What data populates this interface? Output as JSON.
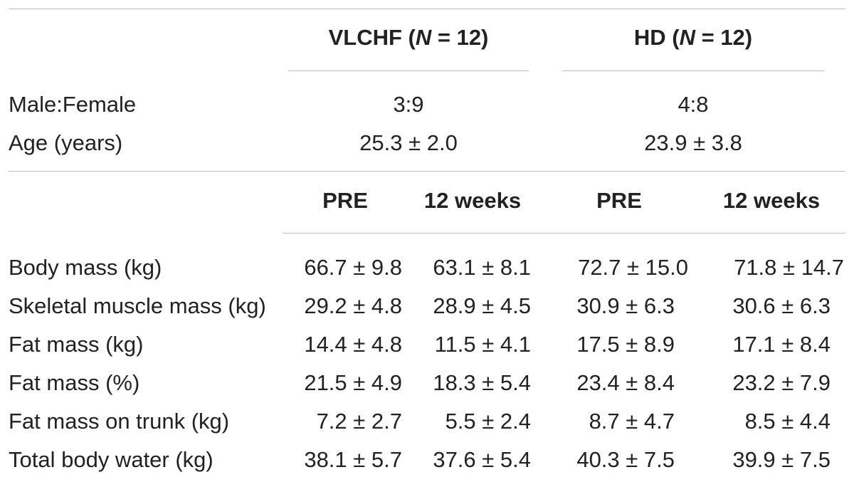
{
  "table": {
    "groups": [
      {
        "label_prefix": "VLCHF (",
        "label_n": "N",
        "label_suffix": " = 12)"
      },
      {
        "label_prefix": "HD (",
        "label_n": "N",
        "label_suffix": " = 12)"
      }
    ],
    "demographics": [
      {
        "label": "Male:Female",
        "vlchf": "3:9",
        "hd": "4:8"
      },
      {
        "label": "Age (years)",
        "vlchf": "25.3 ± 2.0",
        "hd": "23.9 ± 3.8"
      }
    ],
    "time_headers": [
      "PRE",
      "12 weeks",
      "PRE",
      "12 weeks"
    ],
    "measures": [
      {
        "label": "Body mass (kg)",
        "values": [
          "66.7 ± 9.8",
          "63.1 ± 8.1",
          "72.7 ± 15.0",
          "71.8 ± 14.7"
        ]
      },
      {
        "label": "Skeletal muscle mass (kg)",
        "values": [
          "29.2 ± 4.8",
          "28.9 ± 4.5",
          "30.9 ± 6.3",
          "30.6 ± 6.3"
        ]
      },
      {
        "label": "Fat mass (kg)",
        "values": [
          "14.4 ± 4.8",
          "11.5 ± 4.1",
          "17.5 ± 8.9",
          "17.1 ± 8.4"
        ]
      },
      {
        "label": "Fat mass (%)",
        "values": [
          "21.5 ± 4.9",
          "18.3 ± 5.4",
          "23.4 ± 8.4",
          "23.2 ± 7.9"
        ]
      },
      {
        "label": "Fat mass on trunk (kg)",
        "values": [
          "7.2 ± 2.7",
          "5.5 ± 2.4",
          "8.7 ± 4.7",
          "8.5 ± 4.4"
        ]
      },
      {
        "label": "Total body water (kg)",
        "values": [
          "38.1 ± 5.7",
          "37.6 ± 5.4",
          "40.3 ± 7.5",
          "39.9 ± 7.5"
        ]
      }
    ]
  }
}
